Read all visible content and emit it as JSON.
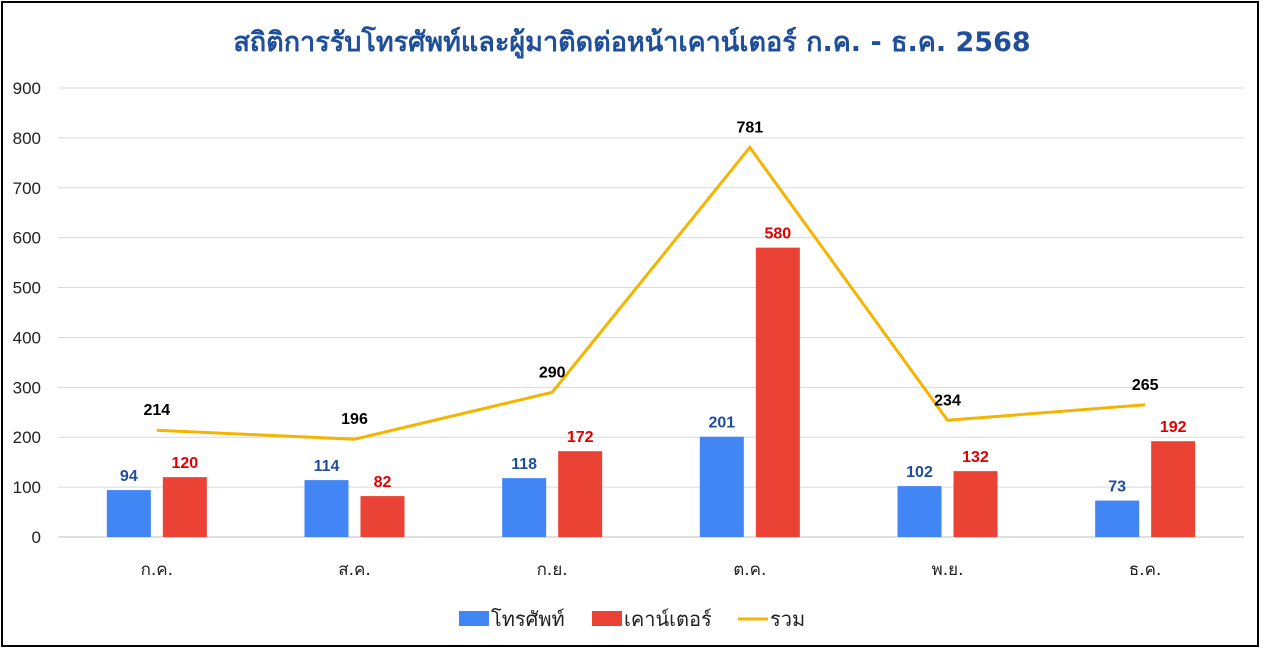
{
  "chart_data": {
    "type": "bar",
    "title": "สถิติการรับโทรศัพท์และผู้มาติดต่อหน้าเคาน์เตอร์ ก.ค. - ธ.ค. 2568",
    "categories": [
      "ก.ค.",
      "ส.ค.",
      "ก.ย.",
      "ต.ค.",
      "พ.ย.",
      "ธ.ค."
    ],
    "series": [
      {
        "name": "โทรศัพท์",
        "kind": "bar",
        "color": "#4285F4",
        "label_color": "#1F4E9B",
        "values": [
          94,
          114,
          118,
          201,
          102,
          73
        ]
      },
      {
        "name": "เคาน์เตอร์",
        "kind": "bar",
        "color": "#EA4335",
        "label_color": "#E00000",
        "values": [
          120,
          82,
          172,
          580,
          132,
          192
        ]
      },
      {
        "name": "รวม",
        "kind": "line",
        "color": "#F4B400",
        "label_color": "#000000",
        "values": [
          214,
          196,
          290,
          781,
          234,
          265
        ]
      }
    ],
    "y_ticks": [
      "0",
      "100",
      "200",
      "300",
      "400",
      "500",
      "600",
      "700",
      "800",
      "900"
    ],
    "ylim": [
      0,
      900
    ],
    "grid": true,
    "legend_position": "bottom",
    "data_labels": true
  }
}
